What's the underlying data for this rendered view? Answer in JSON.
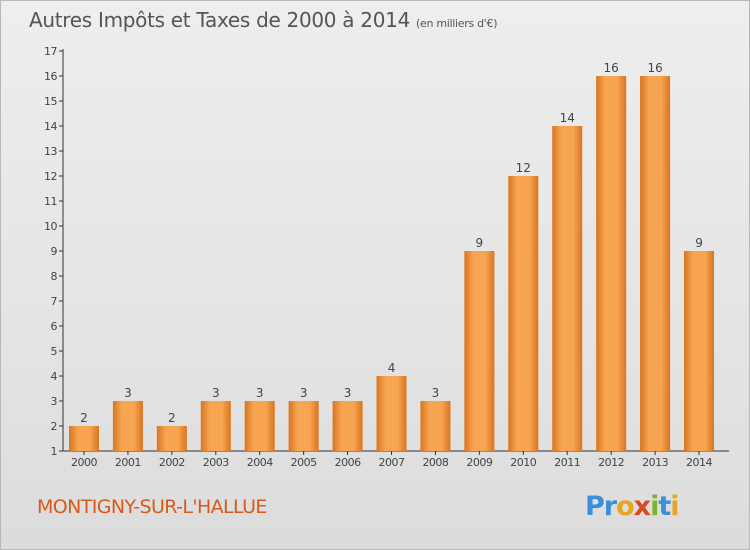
{
  "header": {
    "title": "Autres Impôts et Taxes de 2000 à 2014",
    "subtitle": "(en milliers d'€)"
  },
  "footer": {
    "city": "MONTIGNY-SUR-L'HALLUE",
    "logo_text": "Proxiti"
  },
  "colors": {
    "bar_light": "#f7a552",
    "bar_dark": "#d9751e",
    "city_text": "#d9591a",
    "axis": "#333333"
  },
  "chart_data": {
    "type": "bar",
    "title": "Autres Impôts et Taxes de 2000 à 2014",
    "subtitle": "(en milliers d'€)",
    "categories": [
      "2000",
      "2001",
      "2002",
      "2003",
      "2004",
      "2005",
      "2006",
      "2007",
      "2008",
      "2009",
      "2010",
      "2011",
      "2012",
      "2013",
      "2014"
    ],
    "values": [
      2,
      3,
      2,
      3,
      3,
      3,
      3,
      4,
      3,
      9,
      12,
      14,
      16,
      16,
      9
    ],
    "ylim": [
      1,
      17
    ],
    "yticks": [
      1,
      2,
      3,
      4,
      5,
      6,
      7,
      8,
      9,
      10,
      11,
      12,
      13,
      14,
      15,
      16,
      17
    ],
    "grid": false,
    "data_labels": true
  }
}
